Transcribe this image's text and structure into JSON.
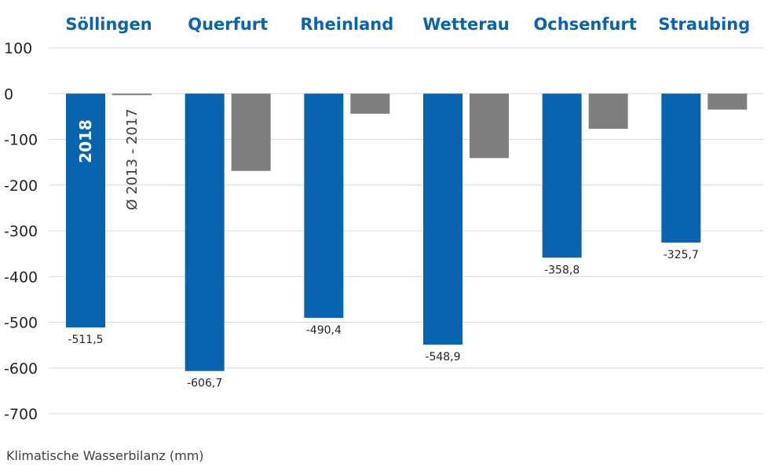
{
  "chart_data": {
    "type": "bar",
    "categories": [
      "Söllingen",
      "Querfurt",
      "Rheinland",
      "Wetterau",
      "Ochsenfurt",
      "Straubing"
    ],
    "series": [
      {
        "name": "2018",
        "color": "#0a63ae",
        "values": [
          -511.5,
          -606.7,
          -490.4,
          -548.9,
          -358.8,
          -325.7
        ]
      },
      {
        "name": "Ø 2013 - 2017",
        "color": "#7f7f7f",
        "values": [
          -3,
          -169,
          -44,
          -141,
          -77,
          -35
        ]
      }
    ],
    "data_labels": [
      "-511,5",
      "-606,7",
      "-490,4",
      "-548,9",
      "-358,8",
      "-325,7"
    ],
    "y_ticks": [
      "100",
      "0",
      "-100",
      "-200",
      "-300",
      "-400",
      "-500",
      "-600",
      "-700"
    ],
    "ylim": [
      -700,
      100
    ],
    "ylabel": "Klimatische Wasserbilanz (mm)",
    "grid": true,
    "legend": "inside first category group"
  }
}
